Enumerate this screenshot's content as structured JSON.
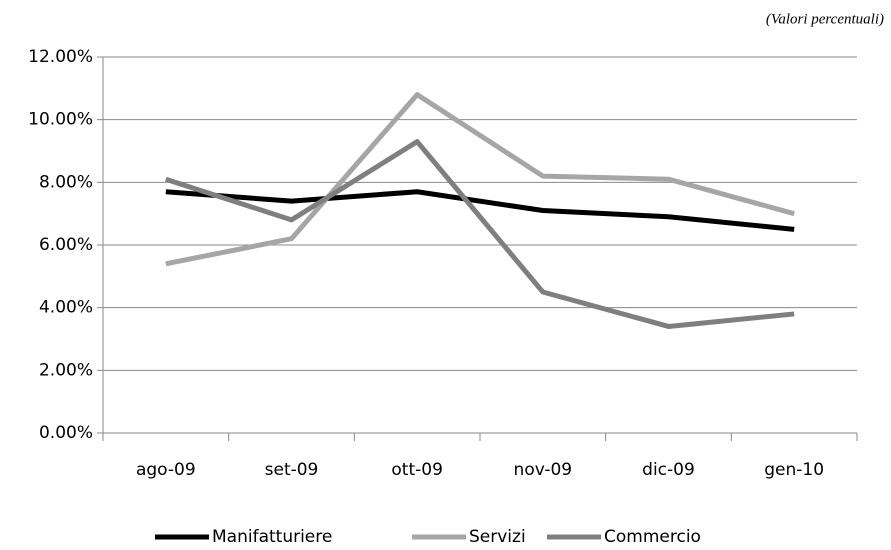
{
  "chart_data": {
    "type": "line",
    "annotation": "(Valori percentuali)",
    "categories": [
      "ago-09",
      "set-09",
      "ott-09",
      "nov-09",
      "dic-09",
      "gen-10"
    ],
    "series": [
      {
        "name": "Manifatturiere",
        "color": "#000000",
        "values": [
          7.7,
          7.4,
          7.7,
          7.1,
          6.9,
          6.5
        ]
      },
      {
        "name": "Servizi",
        "color": "#a6a6a6",
        "values": [
          5.4,
          6.2,
          10.8,
          8.2,
          8.1,
          7.0
        ]
      },
      {
        "name": "Commercio",
        "color": "#7f7f7f",
        "values": [
          8.1,
          6.8,
          9.3,
          4.5,
          3.4,
          3.8
        ]
      }
    ],
    "ylim": [
      0,
      12
    ],
    "yticks": [
      {
        "value": 0,
        "label": "0.00%"
      },
      {
        "value": 2,
        "label": "2.00%"
      },
      {
        "value": 4,
        "label": "4.00%"
      },
      {
        "value": 6,
        "label": "6.00%"
      },
      {
        "value": 8,
        "label": "8.00%"
      },
      {
        "value": 10,
        "label": "10.00%"
      },
      {
        "value": 12,
        "label": "12.00%"
      }
    ],
    "grid": true,
    "legend": "bottom"
  }
}
